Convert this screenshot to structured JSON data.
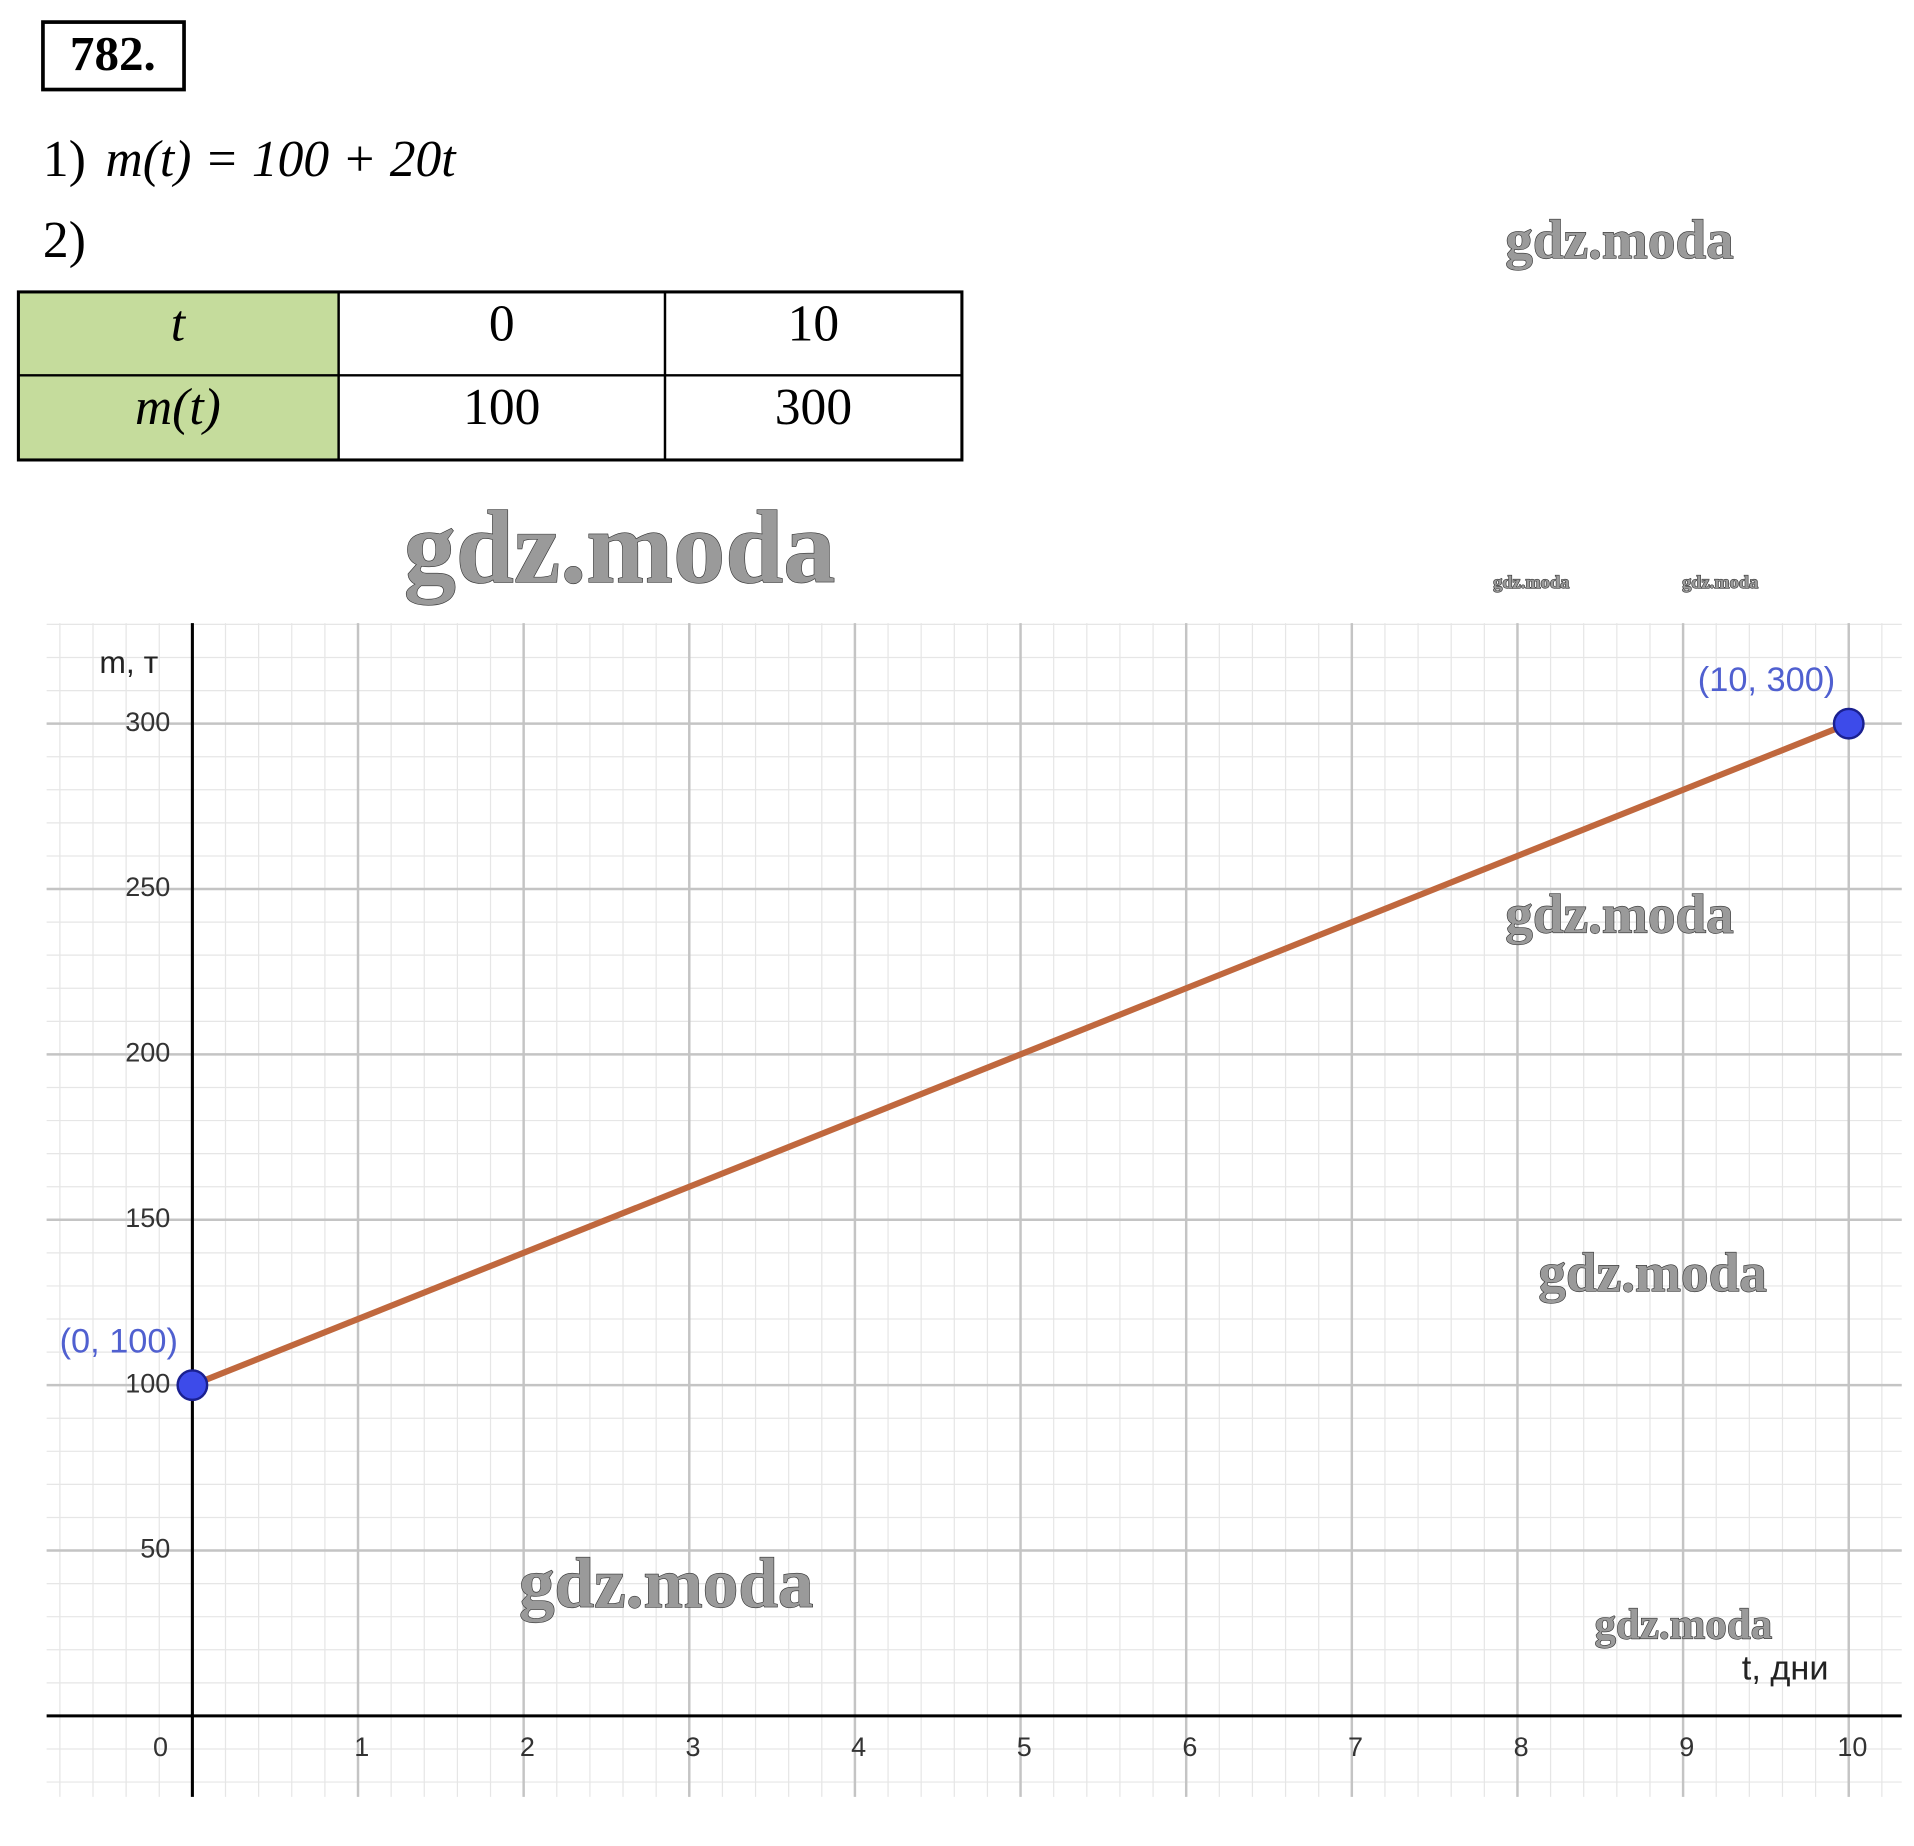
{
  "header": {
    "number": "782."
  },
  "items": [
    {
      "label": "1)",
      "formula": "m(t) = 100 + 20t"
    },
    {
      "label": "2)"
    }
  ],
  "table": {
    "rows": [
      [
        "t",
        "0",
        "10"
      ],
      [
        "m(t)",
        "100",
        "300"
      ]
    ]
  },
  "watermarks": [
    "gdz.moda",
    "gdz.moda",
    "gdz.moda",
    "gdz.moda",
    "gdz.moda",
    "gdz.moda",
    "gdz.moda",
    "gdz.moda"
  ],
  "chart_data": {
    "type": "line",
    "x": [
      0,
      10
    ],
    "series": [
      {
        "values": [
          100,
          300
        ],
        "color": "#c0683e"
      }
    ],
    "point_labels": [
      "(0, 100)",
      "(10, 300)"
    ],
    "point_color": "#3d4bea",
    "point_label_color": "#5060d0",
    "xlabel": "t, дни",
    "ylabel": "m, т",
    "xlim": [
      -0.88,
      10.32
    ],
    "ylim": [
      -24.5,
      330.4
    ],
    "xticks": [
      0,
      1,
      2,
      3,
      4,
      5,
      6,
      7,
      8,
      9,
      10
    ],
    "yticks": [
      50,
      100,
      150,
      200,
      250,
      300
    ],
    "grid": true
  }
}
